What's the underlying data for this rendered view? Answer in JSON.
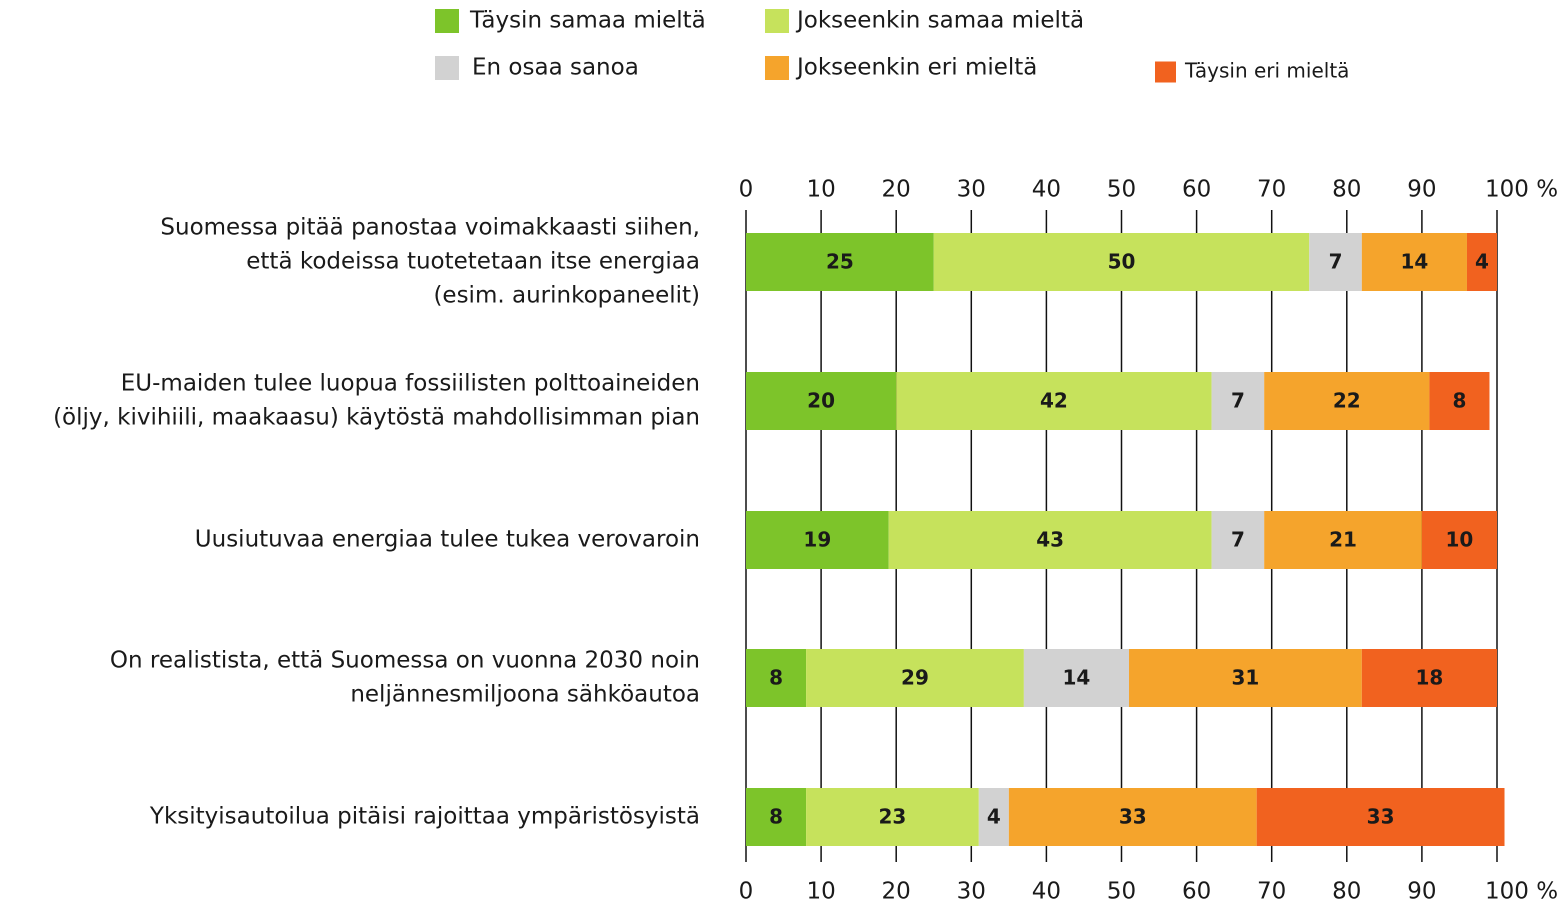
{
  "chart_data": {
    "type": "stacked-barh",
    "categories": [
      [
        "Suomessa pitää panostaa voimakkaasti siihen,",
        "että kodeissa tuotetetaan itse energiaa",
        "(esim. aurinkopaneelit)"
      ],
      [
        "EU-maiden tulee luopua fossiilisten polttoaineiden",
        "(öljy, kivihiili, maakaasu) käytöstä mahdollisimman pian"
      ],
      [
        "Uusiutuvaa energiaa tulee tukea verovaroin"
      ],
      [
        "On realistista, että Suomessa on vuonna 2030 noin",
        "neljännesmiljoona sähköautoa"
      ],
      [
        "Yksityisautoilua pitäisi rajoittaa ympäristösyistä"
      ]
    ],
    "series": [
      {
        "name": "Täysin samaa mieltä",
        "color": "#7dc42a",
        "values": [
          25,
          20,
          19,
          8,
          8
        ]
      },
      {
        "name": "Jokseenkin samaa mieltä",
        "color": "#c6e25c",
        "values": [
          50,
          42,
          43,
          29,
          23
        ]
      },
      {
        "name": "En osaa sanoa",
        "color": "#d2d2d2",
        "values": [
          7,
          7,
          7,
          14,
          4
        ]
      },
      {
        "name": "Jokseenkin eri mieltä",
        "color": "#f5a42c",
        "values": [
          14,
          22,
          21,
          31,
          33
        ]
      },
      {
        "name": "Täysin eri mieltä",
        "color": "#f1621f",
        "values": [
          4,
          8,
          10,
          18,
          33
        ]
      }
    ],
    "xlim": [
      0,
      100
    ],
    "xticks": [
      0,
      10,
      20,
      30,
      40,
      50,
      60,
      70,
      80,
      90,
      {
        "value": 100,
        "label": "100 %"
      }
    ],
    "grid": true
  }
}
